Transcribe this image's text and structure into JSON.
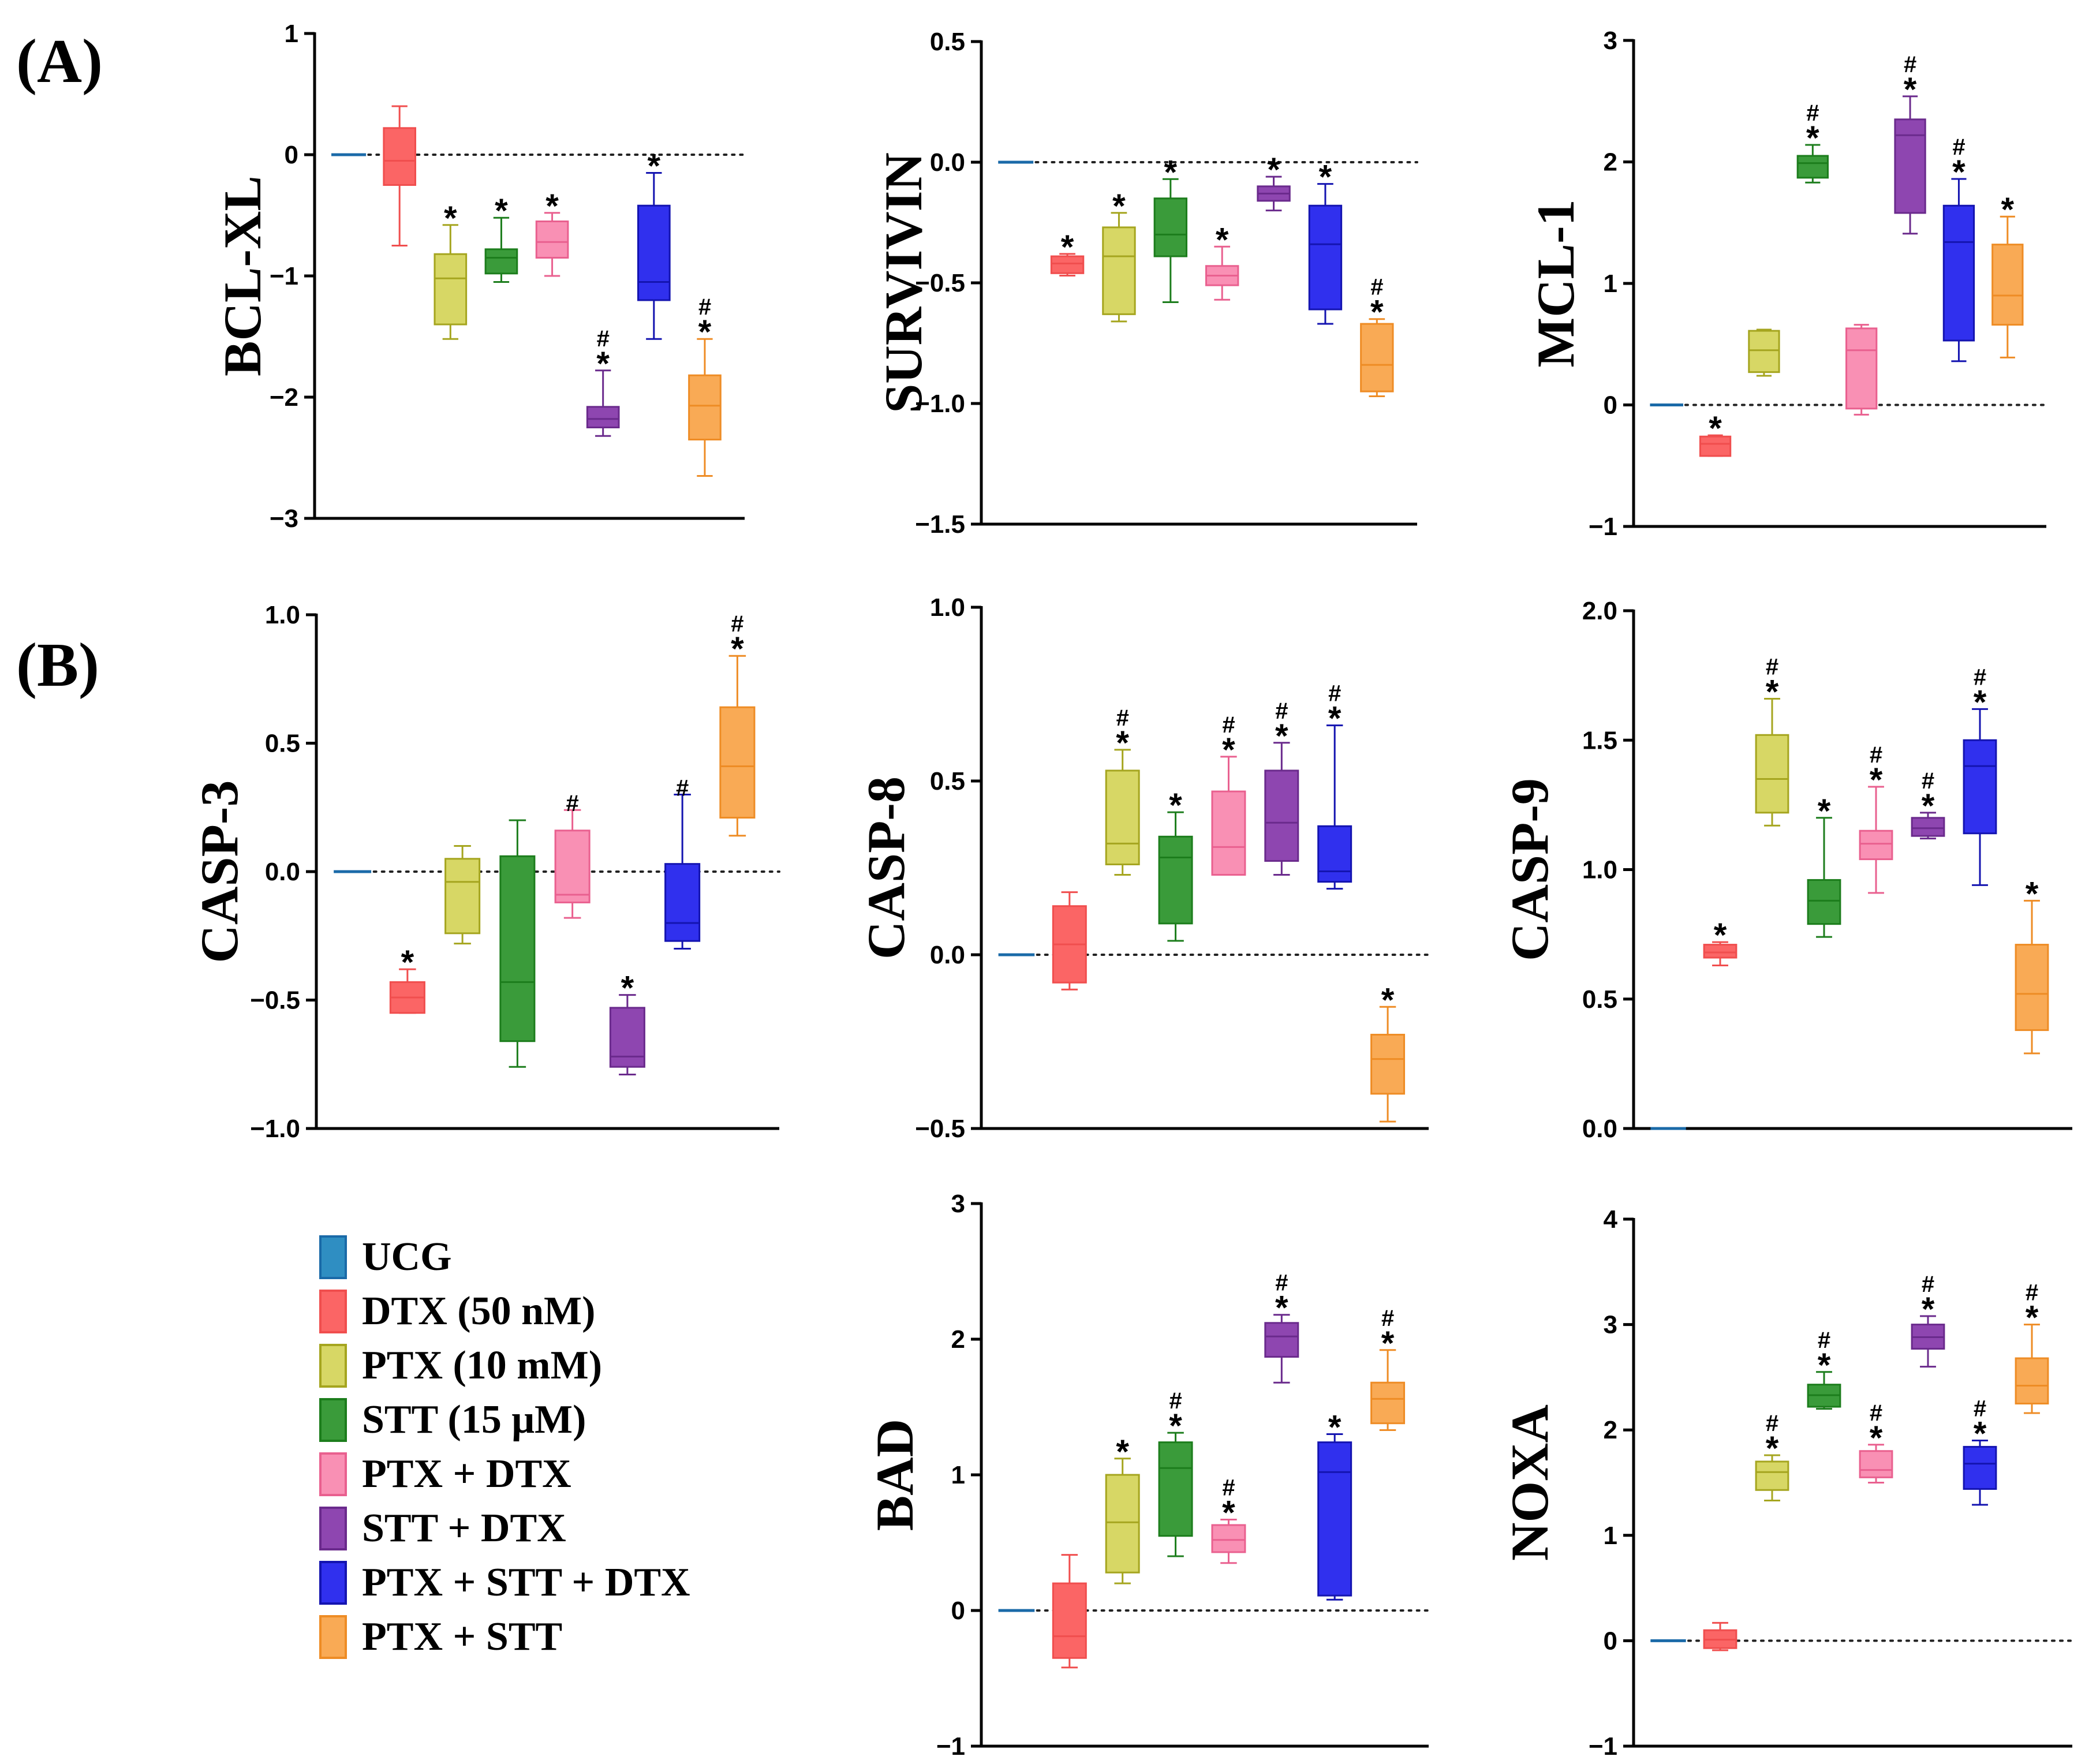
{
  "panel_labels": [
    "(A)",
    "(B)"
  ],
  "groups": [
    {
      "label": "UCG",
      "color": "#1a6aa8",
      "fill": "#2f8ec2"
    },
    {
      "label": "DTX (50 nM)",
      "color": "#f04e4e",
      "fill": "#fb6565"
    },
    {
      "label": "PTX (10 mM)",
      "color": "#a5a51f",
      "fill": "#d7d765"
    },
    {
      "label": "STT (15 μM)",
      "color": "#1c7d1c",
      "fill": "#3a9b3a"
    },
    {
      "label": "PTX + DTX",
      "color": "#e9608f",
      "fill": "#f990b4"
    },
    {
      "label": "STT + DTX",
      "color": "#6a2a8c",
      "fill": "#8e46b0"
    },
    {
      "label": "PTX + STT + DTX",
      "color": "#1414b0",
      "fill": "#3030ee"
    },
    {
      "label": "PTX + STT",
      "color": "#ee8c25",
      "fill": "#f9aa55"
    }
  ],
  "chart_data": [
    {
      "type": "box",
      "panel": "A",
      "title": "",
      "xlabel": "",
      "ylabel": "BCL-XL",
      "ylim": [
        -3,
        1
      ],
      "yticks": [
        "1",
        "0",
        "−1",
        "−2",
        "−3"
      ],
      "ytick_values": [
        1,
        0,
        -1,
        -2,
        -3
      ],
      "series": [
        {
          "name": "UCG",
          "min": 0,
          "q1": 0,
          "median": 0,
          "q3": 0,
          "max": 0,
          "annot": ""
        },
        {
          "name": "DTX (50 nM)",
          "min": -0.75,
          "q1": -0.25,
          "median": -0.05,
          "q3": 0.22,
          "max": 0.4,
          "annot": ""
        },
        {
          "name": "PTX (10 mM)",
          "min": -1.52,
          "q1": -1.4,
          "median": -1.02,
          "q3": -0.82,
          "max": -0.58,
          "annot": "*"
        },
        {
          "name": "STT (15 μM)",
          "min": -1.05,
          "q1": -0.98,
          "median": -0.85,
          "q3": -0.78,
          "max": -0.52,
          "annot": "*"
        },
        {
          "name": "PTX + DTX",
          "min": -1.0,
          "q1": -0.85,
          "median": -0.72,
          "q3": -0.55,
          "max": -0.48,
          "annot": "*"
        },
        {
          "name": "STT + DTX",
          "min": -2.32,
          "q1": -2.25,
          "median": -2.18,
          "q3": -2.08,
          "max": -1.78,
          "annot": "#*"
        },
        {
          "name": "PTX + STT + DTX",
          "min": -1.52,
          "q1": -1.2,
          "median": -1.05,
          "q3": -0.42,
          "max": -0.15,
          "annot": "*"
        },
        {
          "name": "PTX + STT",
          "min": -2.65,
          "q1": -2.35,
          "median": -2.07,
          "q3": -1.82,
          "max": -1.52,
          "annot": "#*"
        }
      ]
    },
    {
      "type": "box",
      "panel": "A",
      "title": "",
      "xlabel": "",
      "ylabel": "SURVIVIN",
      "ylim": [
        -1.5,
        0.5
      ],
      "yticks": [
        "0.5",
        "0.0",
        "−0.5",
        "−1.0",
        "−1.5"
      ],
      "ytick_values": [
        0.5,
        0.0,
        -0.5,
        -1.0,
        -1.5
      ],
      "series": [
        {
          "name": "UCG",
          "min": 0,
          "q1": 0,
          "median": 0,
          "q3": 0,
          "max": 0,
          "annot": ""
        },
        {
          "name": "DTX (50 nM)",
          "min": -0.47,
          "q1": -0.46,
          "median": -0.42,
          "q3": -0.39,
          "max": -0.38,
          "annot": "*"
        },
        {
          "name": "PTX (10 mM)",
          "min": -0.66,
          "q1": -0.63,
          "median": -0.39,
          "q3": -0.27,
          "max": -0.21,
          "annot": "*"
        },
        {
          "name": "STT (15 μM)",
          "min": -0.58,
          "q1": -0.39,
          "median": -0.3,
          "q3": -0.15,
          "max": -0.07,
          "annot": "*"
        },
        {
          "name": "PTX + DTX",
          "min": -0.57,
          "q1": -0.51,
          "median": -0.47,
          "q3": -0.43,
          "max": -0.35,
          "annot": "*"
        },
        {
          "name": "STT + DTX",
          "min": -0.2,
          "q1": -0.16,
          "median": -0.13,
          "q3": -0.1,
          "max": -0.06,
          "annot": "*"
        },
        {
          "name": "PTX + STT + DTX",
          "min": -0.67,
          "q1": -0.61,
          "median": -0.34,
          "q3": -0.18,
          "max": -0.09,
          "annot": "*"
        },
        {
          "name": "PTX + STT",
          "min": -0.97,
          "q1": -0.95,
          "median": -0.84,
          "q3": -0.67,
          "max": -0.65,
          "annot": "#*"
        }
      ]
    },
    {
      "type": "box",
      "panel": "A",
      "title": "",
      "xlabel": "",
      "ylabel": "MCL-1",
      "ylim": [
        -1,
        3
      ],
      "yticks": [
        "3",
        "2",
        "1",
        "0",
        "−1"
      ],
      "ytick_values": [
        3,
        2,
        1,
        0,
        -1
      ],
      "series": [
        {
          "name": "UCG",
          "min": 0,
          "q1": 0,
          "median": 0,
          "q3": 0,
          "max": 0,
          "annot": ""
        },
        {
          "name": "DTX (50 nM)",
          "min": -0.42,
          "q1": -0.42,
          "median": -0.32,
          "q3": -0.26,
          "max": -0.25,
          "annot": "*"
        },
        {
          "name": "PTX (10 mM)",
          "min": 0.24,
          "q1": 0.27,
          "median": 0.45,
          "q3": 0.61,
          "max": 0.62,
          "annot": ""
        },
        {
          "name": "STT (15 μM)",
          "min": 1.83,
          "q1": 1.87,
          "median": 1.99,
          "q3": 2.05,
          "max": 2.14,
          "annot": "#*"
        },
        {
          "name": "PTX + DTX",
          "min": -0.08,
          "q1": -0.03,
          "median": 0.45,
          "q3": 0.63,
          "max": 0.66,
          "annot": ""
        },
        {
          "name": "STT + DTX",
          "min": 1.41,
          "q1": 1.58,
          "median": 2.22,
          "q3": 2.35,
          "max": 2.54,
          "annot": "#*"
        },
        {
          "name": "PTX + STT + DTX",
          "min": 0.36,
          "q1": 0.53,
          "median": 1.34,
          "q3": 1.64,
          "max": 1.86,
          "annot": "#*"
        },
        {
          "name": "PTX + STT",
          "min": 0.39,
          "q1": 0.66,
          "median": 0.9,
          "q3": 1.32,
          "max": 1.55,
          "annot": "*"
        }
      ]
    },
    {
      "type": "box",
      "panel": "B",
      "title": "",
      "xlabel": "",
      "ylabel": "CASP-3",
      "ylim": [
        -1.0,
        1.0
      ],
      "yticks": [
        "1.0",
        "0.5",
        "0.0",
        "−0.5",
        "−1.0"
      ],
      "ytick_values": [
        1.0,
        0.5,
        0.0,
        -0.5,
        -1.0
      ],
      "series": [
        {
          "name": "UCG",
          "min": 0,
          "q1": 0,
          "median": 0,
          "q3": 0,
          "max": 0,
          "annot": ""
        },
        {
          "name": "DTX (50 nM)",
          "min": -0.55,
          "q1": -0.55,
          "median": -0.49,
          "q3": -0.43,
          "max": -0.38,
          "annot": "*"
        },
        {
          "name": "PTX (10 mM)",
          "min": -0.28,
          "q1": -0.24,
          "median": -0.04,
          "q3": 0.05,
          "max": 0.1,
          "annot": ""
        },
        {
          "name": "STT (15 μM)",
          "min": -0.76,
          "q1": -0.66,
          "median": -0.43,
          "q3": 0.06,
          "max": 0.2,
          "annot": ""
        },
        {
          "name": "PTX + DTX",
          "min": -0.18,
          "q1": -0.12,
          "median": -0.09,
          "q3": 0.16,
          "max": 0.24,
          "annot": "#"
        },
        {
          "name": "STT + DTX",
          "min": -0.79,
          "q1": -0.76,
          "median": -0.72,
          "q3": -0.53,
          "max": -0.48,
          "annot": "*"
        },
        {
          "name": "PTX + STT + DTX",
          "min": -0.3,
          "q1": -0.27,
          "median": -0.2,
          "q3": 0.03,
          "max": 0.3,
          "annot": "#"
        },
        {
          "name": "PTX + STT",
          "min": 0.14,
          "q1": 0.21,
          "median": 0.41,
          "q3": 0.64,
          "max": 0.84,
          "annot": "#*"
        }
      ]
    },
    {
      "type": "box",
      "panel": "B",
      "title": "",
      "xlabel": "",
      "ylabel": "CASP-8",
      "ylim": [
        -0.5,
        1.0
      ],
      "yticks": [
        "1.0",
        "0.5",
        "0.0",
        "−0.5"
      ],
      "ytick_values": [
        1.0,
        0.5,
        0.0,
        -0.5
      ],
      "series": [
        {
          "name": "UCG",
          "min": 0,
          "q1": 0,
          "median": 0,
          "q3": 0,
          "max": 0,
          "annot": ""
        },
        {
          "name": "DTX (50 nM)",
          "min": -0.1,
          "q1": -0.08,
          "median": 0.03,
          "q3": 0.14,
          "max": 0.18,
          "annot": ""
        },
        {
          "name": "PTX (10 mM)",
          "min": 0.23,
          "q1": 0.26,
          "median": 0.32,
          "q3": 0.53,
          "max": 0.59,
          "annot": "#*"
        },
        {
          "name": "STT (15 μM)",
          "min": 0.04,
          "q1": 0.09,
          "median": 0.28,
          "q3": 0.34,
          "max": 0.41,
          "annot": "*"
        },
        {
          "name": "PTX + DTX",
          "min": 0.23,
          "q1": 0.23,
          "median": 0.31,
          "q3": 0.47,
          "max": 0.57,
          "annot": "#*"
        },
        {
          "name": "STT + DTX",
          "min": 0.23,
          "q1": 0.27,
          "median": 0.38,
          "q3": 0.53,
          "max": 0.61,
          "annot": "#*"
        },
        {
          "name": "PTX + STT + DTX",
          "min": 0.19,
          "q1": 0.21,
          "median": 0.24,
          "q3": 0.37,
          "max": 0.66,
          "annot": "#*"
        },
        {
          "name": "PTX + STT",
          "min": -0.48,
          "q1": -0.4,
          "median": -0.3,
          "q3": -0.23,
          "max": -0.15,
          "annot": "*"
        }
      ]
    },
    {
      "type": "box",
      "panel": "B",
      "title": "",
      "xlabel": "",
      "ylabel": "CASP-9",
      "ylim": [
        0.0,
        2.0
      ],
      "yticks": [
        "2.0",
        "1.5",
        "1.0",
        "0.5",
        "0.0"
      ],
      "ytick_values": [
        2.0,
        1.5,
        1.0,
        0.5,
        0.0
      ],
      "series": [
        {
          "name": "UCG",
          "min": 0,
          "q1": 0,
          "median": 0,
          "q3": 0,
          "max": 0,
          "annot": ""
        },
        {
          "name": "DTX (50 nM)",
          "min": 0.63,
          "q1": 0.66,
          "median": 0.68,
          "q3": 0.71,
          "max": 0.72,
          "annot": "*"
        },
        {
          "name": "PTX (10 mM)",
          "min": 1.17,
          "q1": 1.22,
          "median": 1.35,
          "q3": 1.52,
          "max": 1.66,
          "annot": "#*"
        },
        {
          "name": "STT (15 μM)",
          "min": 0.74,
          "q1": 0.79,
          "median": 0.88,
          "q3": 0.96,
          "max": 1.2,
          "annot": "*"
        },
        {
          "name": "PTX + DTX",
          "min": 0.91,
          "q1": 1.04,
          "median": 1.1,
          "q3": 1.15,
          "max": 1.32,
          "annot": "#*"
        },
        {
          "name": "STT + DTX",
          "min": 1.12,
          "q1": 1.13,
          "median": 1.16,
          "q3": 1.2,
          "max": 1.22,
          "annot": "#*"
        },
        {
          "name": "PTX + STT + DTX",
          "min": 0.94,
          "q1": 1.14,
          "median": 1.4,
          "q3": 1.5,
          "max": 1.62,
          "annot": "#*"
        },
        {
          "name": "PTX + STT",
          "min": 0.29,
          "q1": 0.38,
          "median": 0.52,
          "q3": 0.71,
          "max": 0.88,
          "annot": "*"
        }
      ]
    },
    {
      "type": "box",
      "panel": "B",
      "title": "",
      "xlabel": "",
      "ylabel": "BAD",
      "ylim": [
        -1,
        3
      ],
      "yticks": [
        "3",
        "2",
        "1",
        "0",
        "−1"
      ],
      "ytick_values": [
        3,
        2,
        1,
        0,
        -1
      ],
      "series": [
        {
          "name": "UCG",
          "min": 0,
          "q1": 0,
          "median": 0,
          "q3": 0,
          "max": 0,
          "annot": ""
        },
        {
          "name": "DTX (50 nM)",
          "min": -0.42,
          "q1": -0.35,
          "median": -0.19,
          "q3": 0.2,
          "max": 0.41,
          "annot": ""
        },
        {
          "name": "PTX (10 mM)",
          "min": 0.2,
          "q1": 0.28,
          "median": 0.65,
          "q3": 1.0,
          "max": 1.12,
          "annot": "*"
        },
        {
          "name": "STT (15 μM)",
          "min": 0.4,
          "q1": 0.55,
          "median": 1.05,
          "q3": 1.24,
          "max": 1.31,
          "annot": "#*"
        },
        {
          "name": "PTX + DTX",
          "min": 0.35,
          "q1": 0.43,
          "median": 0.52,
          "q3": 0.63,
          "max": 0.67,
          "annot": "#*"
        },
        {
          "name": "STT + DTX",
          "min": 1.68,
          "q1": 1.87,
          "median": 2.02,
          "q3": 2.12,
          "max": 2.18,
          "annot": "#*"
        },
        {
          "name": "PTX + STT + DTX",
          "min": 0.08,
          "q1": 0.11,
          "median": 1.02,
          "q3": 1.24,
          "max": 1.3,
          "annot": "*"
        },
        {
          "name": "PTX + STT",
          "min": 1.33,
          "q1": 1.38,
          "median": 1.56,
          "q3": 1.68,
          "max": 1.92,
          "annot": "#*"
        }
      ]
    },
    {
      "type": "box",
      "panel": "B",
      "title": "",
      "xlabel": "",
      "ylabel": "NOXA",
      "ylim": [
        -1,
        4
      ],
      "yticks": [
        "4",
        "3",
        "2",
        "1",
        "0",
        "−1"
      ],
      "ytick_values": [
        4,
        3,
        2,
        1,
        0,
        -1
      ],
      "series": [
        {
          "name": "UCG",
          "min": 0,
          "q1": 0,
          "median": 0,
          "q3": 0,
          "max": 0,
          "annot": ""
        },
        {
          "name": "DTX (50 nM)",
          "min": -0.09,
          "q1": -0.07,
          "median": 0.01,
          "q3": 0.1,
          "max": 0.17,
          "annot": ""
        },
        {
          "name": "PTX (10 mM)",
          "min": 1.33,
          "q1": 1.43,
          "median": 1.6,
          "q3": 1.7,
          "max": 1.76,
          "annot": "#*"
        },
        {
          "name": "STT (15 μM)",
          "min": 2.2,
          "q1": 2.22,
          "median": 2.33,
          "q3": 2.43,
          "max": 2.55,
          "annot": "#*"
        },
        {
          "name": "PTX + DTX",
          "min": 1.5,
          "q1": 1.55,
          "median": 1.62,
          "q3": 1.8,
          "max": 1.86,
          "annot": "#*"
        },
        {
          "name": "STT + DTX",
          "min": 2.6,
          "q1": 2.77,
          "median": 2.88,
          "q3": 3.0,
          "max": 3.08,
          "annot": "#*"
        },
        {
          "name": "PTX + STT + DTX",
          "min": 1.29,
          "q1": 1.44,
          "median": 1.68,
          "q3": 1.84,
          "max": 1.9,
          "annot": "#*"
        },
        {
          "name": "PTX + STT",
          "min": 2.16,
          "q1": 2.25,
          "median": 2.42,
          "q3": 2.68,
          "max": 3.0,
          "annot": "#*"
        }
      ]
    }
  ]
}
